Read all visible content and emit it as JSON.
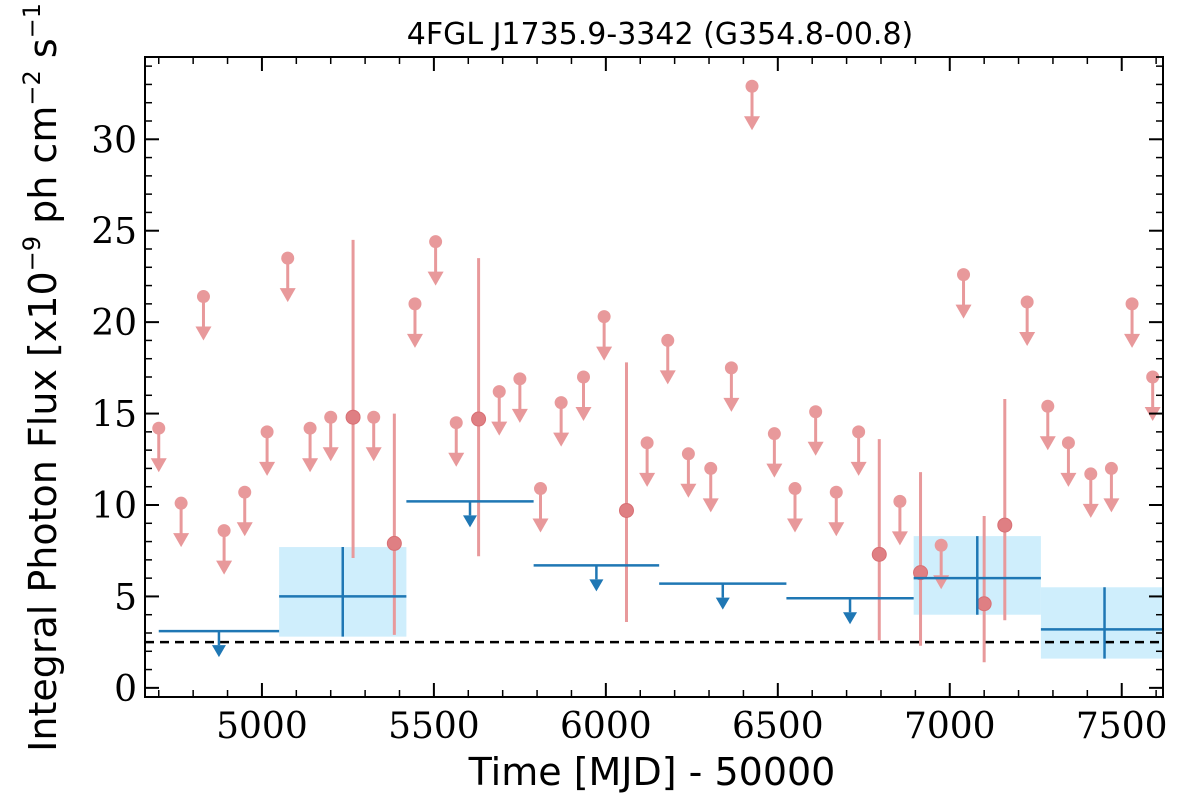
{
  "chart_data": {
    "type": "scatter",
    "title": "4FGL J1735.9-3342 (G354.8-00.8)",
    "xlabel": "Time [MJD] - 50000",
    "ylabel_main": "Integral Photon Flux [x10",
    "ylabel_exp1": "−9",
    "ylabel_mid": " ph cm",
    "ylabel_exp2": "−2",
    "ylabel_end": " s",
    "ylabel_exp3": "−1",
    "ylabel_close": "]",
    "xlim": [
      4660,
      7620
    ],
    "ylim": [
      -0.5,
      34.5
    ],
    "xticks": [
      5000,
      5500,
      6000,
      6500,
      7000,
      7500
    ],
    "yticks": [
      0,
      5,
      10,
      15,
      20,
      25,
      30
    ],
    "colors": {
      "short_points": "#e8999b",
      "long_bins": "#1f77b4",
      "long_band": "#cfeefc",
      "reference_line": "#000000"
    },
    "reference_line": {
      "y": 2.5,
      "style": "dashed"
    },
    "short_timescale_upper_limits": [
      {
        "x": 4700,
        "y": 14.2
      },
      {
        "x": 4765,
        "y": 10.1
      },
      {
        "x": 4830,
        "y": 21.4
      },
      {
        "x": 4890,
        "y": 8.6
      },
      {
        "x": 4950,
        "y": 10.7
      },
      {
        "x": 5015,
        "y": 14.0
      },
      {
        "x": 5075,
        "y": 23.5
      },
      {
        "x": 5140,
        "y": 14.2
      },
      {
        "x": 5200,
        "y": 14.8
      },
      {
        "x": 5325,
        "y": 14.8
      },
      {
        "x": 5445,
        "y": 21.0
      },
      {
        "x": 5505,
        "y": 24.4
      },
      {
        "x": 5565,
        "y": 14.5
      },
      {
        "x": 5690,
        "y": 16.2
      },
      {
        "x": 5750,
        "y": 16.9
      },
      {
        "x": 5810,
        "y": 10.9
      },
      {
        "x": 5870,
        "y": 15.6
      },
      {
        "x": 5935,
        "y": 17.0
      },
      {
        "x": 5995,
        "y": 20.3
      },
      {
        "x": 6120,
        "y": 13.4
      },
      {
        "x": 6180,
        "y": 19.0
      },
      {
        "x": 6240,
        "y": 12.8
      },
      {
        "x": 6305,
        "y": 12.0
      },
      {
        "x": 6365,
        "y": 17.5
      },
      {
        "x": 6425,
        "y": 32.9
      },
      {
        "x": 6490,
        "y": 13.9
      },
      {
        "x": 6550,
        "y": 10.9
      },
      {
        "x": 6610,
        "y": 15.1
      },
      {
        "x": 6670,
        "y": 10.7
      },
      {
        "x": 6735,
        "y": 14.0
      },
      {
        "x": 6855,
        "y": 10.2
      },
      {
        "x": 6975,
        "y": 7.8
      },
      {
        "x": 7040,
        "y": 22.6
      },
      {
        "x": 7225,
        "y": 21.1
      },
      {
        "x": 7285,
        "y": 15.4
      },
      {
        "x": 7345,
        "y": 13.4
      },
      {
        "x": 7410,
        "y": 11.7
      },
      {
        "x": 7470,
        "y": 12.0
      },
      {
        "x": 7530,
        "y": 21.0
      },
      {
        "x": 7590,
        "y": 17.0
      }
    ],
    "short_timescale_detections": [
      {
        "x": 5265,
        "y": 14.8,
        "ylo": 7.1,
        "yhi": 24.5
      },
      {
        "x": 5385,
        "y": 7.9,
        "ylo": 2.9,
        "yhi": 15.0
      },
      {
        "x": 5630,
        "y": 14.7,
        "ylo": 7.2,
        "yhi": 23.5
      },
      {
        "x": 6060,
        "y": 9.7,
        "ylo": 3.6,
        "yhi": 17.8
      },
      {
        "x": 6795,
        "y": 7.3,
        "ylo": 2.6,
        "yhi": 13.6
      },
      {
        "x": 6915,
        "y": 6.3,
        "ylo": 2.3,
        "yhi": 11.8
      },
      {
        "x": 7100,
        "y": 4.6,
        "ylo": 1.4,
        "yhi": 9.4
      },
      {
        "x": 7160,
        "y": 8.9,
        "ylo": 3.7,
        "yhi": 15.8
      }
    ],
    "long_timescale_upper_limits": [
      {
        "x0": 4700,
        "x1": 5050,
        "y": 3.1
      },
      {
        "x0": 5420,
        "x1": 5790,
        "y": 10.2
      },
      {
        "x0": 5790,
        "x1": 6155,
        "y": 6.7
      },
      {
        "x0": 6155,
        "x1": 6525,
        "y": 5.7
      },
      {
        "x0": 6525,
        "x1": 6895,
        "y": 4.9
      }
    ],
    "long_timescale_detections": [
      {
        "x0": 5050,
        "x1": 5420,
        "y": 5.0,
        "ylo": 2.8,
        "yhi": 7.7
      },
      {
        "x0": 6895,
        "x1": 7265,
        "y": 6.0,
        "ylo": 4.0,
        "yhi": 8.3
      },
      {
        "x0": 7265,
        "x1": 7635,
        "y": 3.2,
        "ylo": 1.6,
        "yhi": 5.5
      }
    ]
  }
}
